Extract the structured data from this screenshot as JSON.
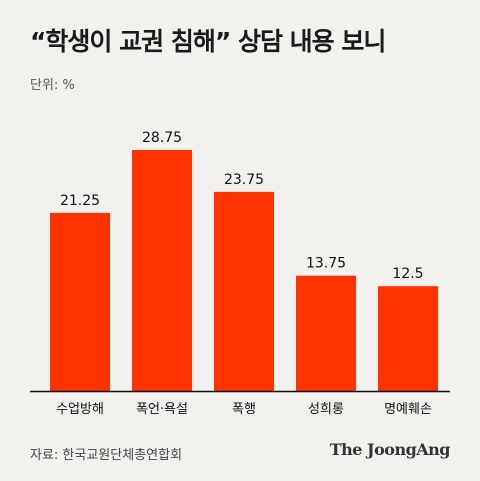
{
  "title": "“학생이 교권 침해” 상담 내용 보니",
  "unit_label": "단위: %",
  "source": "자료: 한국교원단체총연합회",
  "logo_text": "The JoongAng",
  "colors": {
    "bar": "#ff3300",
    "background": "#f3f1ee",
    "axis": "#111111"
  },
  "chart_data": {
    "type": "bar",
    "categories": [
      "수업방해",
      "폭언·욕설",
      "폭행",
      "성희롱",
      "명예훼손"
    ],
    "values": [
      21.25,
      28.75,
      23.75,
      13.75,
      12.5
    ],
    "value_labels": [
      "21.25",
      "28.75",
      "23.75",
      "13.75",
      "12.5"
    ],
    "ylim": [
      0,
      30
    ],
    "grid": false,
    "legend": "none"
  }
}
